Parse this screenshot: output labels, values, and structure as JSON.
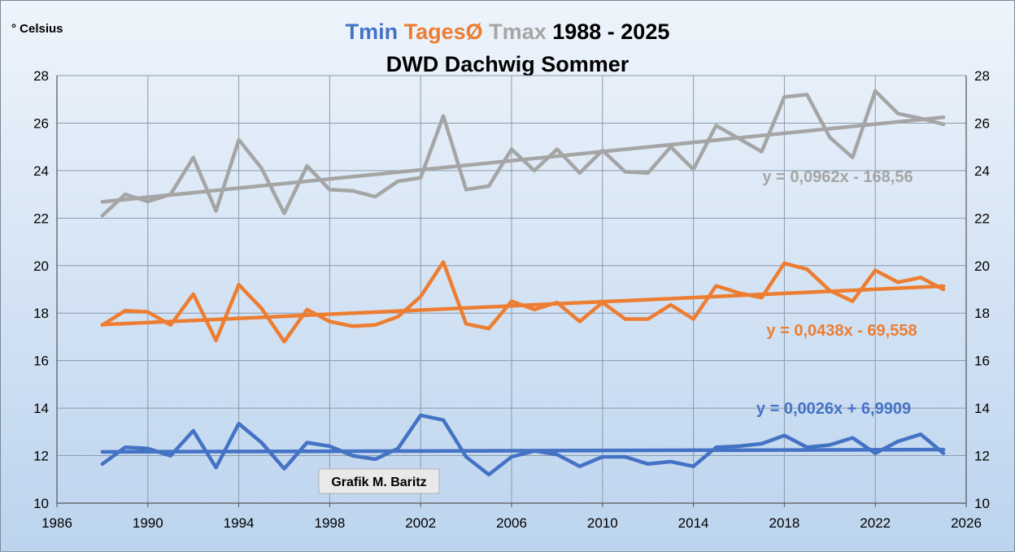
{
  "chart_data": {
    "type": "line",
    "title_parts": [
      {
        "text": "Tmin",
        "color": "#4472C4"
      },
      {
        "text": "TagesØ",
        "color": "#ED7D31"
      },
      {
        "text": "Tmax",
        "color": "#A5A5A5"
      },
      {
        "text": "1988 - 2025",
        "color": "#000000"
      }
    ],
    "subtitle": "DWD Dachwig Sommer",
    "ylabel": "° Celsius",
    "credit": "Grafik M. Baritz",
    "xlim": [
      1986,
      2026
    ],
    "ylim": [
      10,
      28
    ],
    "x_ticks": [
      1986,
      1990,
      1994,
      1998,
      2002,
      2006,
      2010,
      2014,
      2018,
      2022,
      2026
    ],
    "y_ticks": [
      10,
      12,
      14,
      16,
      18,
      20,
      22,
      24,
      26,
      28
    ],
    "grid": true,
    "x": [
      1988,
      1989,
      1990,
      1991,
      1992,
      1993,
      1994,
      1995,
      1996,
      1997,
      1998,
      1999,
      2000,
      2001,
      2002,
      2003,
      2004,
      2005,
      2006,
      2007,
      2008,
      2009,
      2010,
      2011,
      2012,
      2013,
      2014,
      2015,
      2016,
      2017,
      2018,
      2019,
      2020,
      2021,
      2022,
      2023,
      2024,
      2025
    ],
    "series": [
      {
        "key": "tmax",
        "color": "#A5A5A5",
        "values": [
          22.1,
          23.0,
          22.7,
          23.0,
          24.55,
          22.3,
          25.3,
          24.1,
          22.2,
          24.2,
          23.2,
          23.15,
          22.9,
          23.55,
          23.7,
          26.3,
          23.2,
          23.35,
          24.9,
          24.0,
          24.9,
          23.9,
          24.85,
          23.95,
          23.9,
          25.0,
          24.05,
          25.9,
          25.35,
          24.8,
          27.1,
          27.2,
          25.4,
          24.55,
          27.35,
          26.4,
          26.2,
          25.95
        ],
        "trend": {
          "slope": 0.0962,
          "intercept": -168.56,
          "label": "y = 0,0962x - 168,56"
        }
      },
      {
        "key": "tmean",
        "color": "#ED7D31",
        "values": [
          17.5,
          18.1,
          18.05,
          17.5,
          18.8,
          16.85,
          19.2,
          18.2,
          16.8,
          18.15,
          17.65,
          17.45,
          17.5,
          17.85,
          18.7,
          20.15,
          17.55,
          17.35,
          18.5,
          18.15,
          18.45,
          17.65,
          18.45,
          17.75,
          17.75,
          18.35,
          17.75,
          19.15,
          18.85,
          18.65,
          20.1,
          19.85,
          18.95,
          18.5,
          19.8,
          19.3,
          19.5,
          19.0
        ],
        "trend": {
          "slope": 0.0438,
          "intercept": -69.558,
          "label": "y = 0,0438x - 69,558"
        }
      },
      {
        "key": "tmin",
        "color": "#4472C4",
        "values": [
          11.65,
          12.35,
          12.3,
          12.0,
          13.05,
          11.5,
          13.35,
          12.55,
          11.45,
          12.55,
          12.4,
          12.0,
          11.85,
          12.3,
          13.7,
          13.5,
          11.95,
          11.2,
          11.95,
          12.2,
          12.05,
          11.55,
          11.95,
          11.95,
          11.65,
          11.75,
          11.55,
          12.35,
          12.4,
          12.5,
          12.85,
          12.35,
          12.45,
          12.75,
          12.1,
          12.6,
          12.9,
          12.1
        ],
        "trend": {
          "slope": 0.0026,
          "intercept": 6.9909,
          "label": "y = 0,0026x + 6,9909"
        }
      }
    ]
  }
}
